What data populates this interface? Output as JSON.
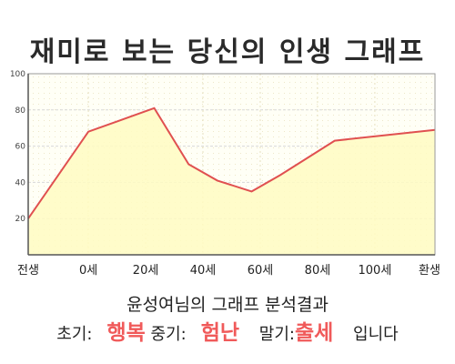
{
  "title": "재미로 보는 당신의 인생 그래프",
  "chart_data": {
    "type": "area",
    "x_labels": [
      "전생",
      "0세",
      "20세",
      "40세",
      "60세",
      "80세",
      "100세",
      "환생"
    ],
    "x": [
      -21,
      0,
      20,
      40,
      60,
      80,
      100,
      121
    ],
    "y_ticks": [
      "20",
      "40",
      "60",
      "80",
      "100"
    ],
    "values": [
      {
        "x": -21,
        "y": 20
      },
      {
        "x": 0,
        "y": 68
      },
      {
        "x": 23,
        "y": 81
      },
      {
        "x": 35,
        "y": 50
      },
      {
        "x": 45,
        "y": 41
      },
      {
        "x": 57,
        "y": 35
      },
      {
        "x": 67,
        "y": 44
      },
      {
        "x": 86,
        "y": 63
      },
      {
        "x": 121,
        "y": 69
      }
    ],
    "xlim": [
      -21,
      121
    ],
    "ylim": [
      0,
      100
    ],
    "grid": true,
    "line_color": "#e05050",
    "fill_color": "#fffcc2"
  },
  "subtitle": "윤성여님의 그래프 분석결과",
  "result": {
    "early_label": "초기:",
    "early_value": "행복",
    "middle_label": "중기:",
    "middle_value": "험난",
    "late_label": "말기:",
    "late_value": "출세",
    "ending": "입니다"
  },
  "highlight_color": "#f05a5a"
}
